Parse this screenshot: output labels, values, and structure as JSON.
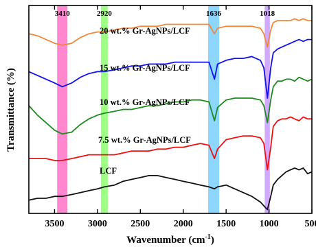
{
  "chart_data": {
    "type": "line",
    "xlabel": "Wavenumber (cm",
    "xlabel_sup": "-1",
    "xlabel_close": ")",
    "ylabel": "Transmittance (%)",
    "xlim": [
      3800,
      500
    ],
    "x_ticks": [
      3500,
      3000,
      2500,
      2000,
      1500,
      1000,
      500
    ],
    "y_ticks_shown": false,
    "grid": false,
    "legend": "none (labels placed above each curve)",
    "bands": [
      {
        "label": "3410",
        "range": [
          3470,
          3350
        ],
        "color": "#ff5fbf"
      },
      {
        "label": "2920",
        "range": [
          2960,
          2880
        ],
        "color": "#7cff5a"
      },
      {
        "label": "1636",
        "range": [
          1710,
          1580
        ],
        "color": "#66c8ff"
      },
      {
        "label": "1018",
        "range": [
          1050,
          990
        ],
        "color": "#c28cff"
      }
    ],
    "x": [
      3800,
      3700,
      3600,
      3500,
      3410,
      3300,
      3200,
      3100,
      3000,
      2920,
      2800,
      2700,
      2600,
      2500,
      2400,
      2300,
      2200,
      2100,
      2000,
      1900,
      1800,
      1700,
      1636,
      1600,
      1500,
      1400,
      1300,
      1200,
      1100,
      1060,
      1018,
      980,
      950,
      900,
      850,
      800,
      750,
      700,
      650,
      600,
      550,
      500
    ],
    "series": [
      {
        "name": "20 wt.% Gr-AgNPs/LCF",
        "color": "#f0883a",
        "values": [
          80,
          79,
          77,
          75,
          74,
          75,
          78,
          80,
          81,
          81,
          82,
          83,
          83,
          84,
          84,
          84,
          85,
          85,
          85,
          85,
          85,
          85,
          80,
          83,
          84,
          84,
          84,
          84,
          83,
          80,
          73,
          82,
          86,
          87,
          87,
          87,
          87,
          88,
          87,
          88,
          87,
          87
        ]
      },
      {
        "name": "15 wt.% Gr-AgNPs/LCF",
        "color": "#1010ee",
        "values": [
          60,
          58,
          56,
          54,
          52,
          54,
          57,
          59,
          60,
          60,
          61,
          62,
          63,
          63,
          64,
          64,
          64,
          65,
          65,
          65,
          65,
          65,
          56,
          64,
          66,
          67,
          67,
          68,
          66,
          62,
          46,
          62,
          70,
          72,
          73,
          74,
          75,
          76,
          77,
          76,
          77,
          77
        ]
      },
      {
        "name": "10 wt.% Gr-AgNPs/LCF",
        "color": "#1e8a1e",
        "values": [
          42,
          37,
          33,
          29,
          27,
          28,
          32,
          35,
          37,
          38,
          39,
          40,
          40,
          41,
          42,
          42,
          43,
          44,
          44,
          45,
          45,
          44,
          34,
          41,
          45,
          46,
          46,
          46,
          45,
          42,
          33,
          45,
          52,
          55,
          55,
          56,
          56,
          55,
          57,
          56,
          55,
          56
        ]
      },
      {
        "name": "7.5 wt.% Gr-AgNPs/LCF",
        "color": "#ee1010",
        "values": [
          14,
          14,
          14,
          13,
          13,
          14,
          15,
          16,
          16,
          16,
          16,
          17,
          18,
          18,
          18,
          19,
          19,
          20,
          20,
          21,
          22,
          21,
          14,
          19,
          24,
          25,
          26,
          26,
          25,
          22,
          8,
          20,
          31,
          34,
          35,
          35,
          36,
          35,
          34,
          36,
          35,
          35
        ]
      },
      {
        "name": "LCF",
        "color": "#111111",
        "values": [
          -8,
          -7,
          -7,
          -6,
          -6,
          -5,
          -4,
          -3,
          -2,
          -1,
          0,
          2,
          3,
          4,
          5,
          5,
          4,
          3,
          2,
          1,
          0,
          -1,
          -2,
          -1,
          0,
          -2,
          -4,
          -6,
          -9,
          -11,
          -13,
          -6,
          0,
          3,
          5,
          7,
          8,
          9,
          8,
          9,
          6,
          7
        ]
      }
    ],
    "ylim": [
      -15,
      95
    ]
  }
}
